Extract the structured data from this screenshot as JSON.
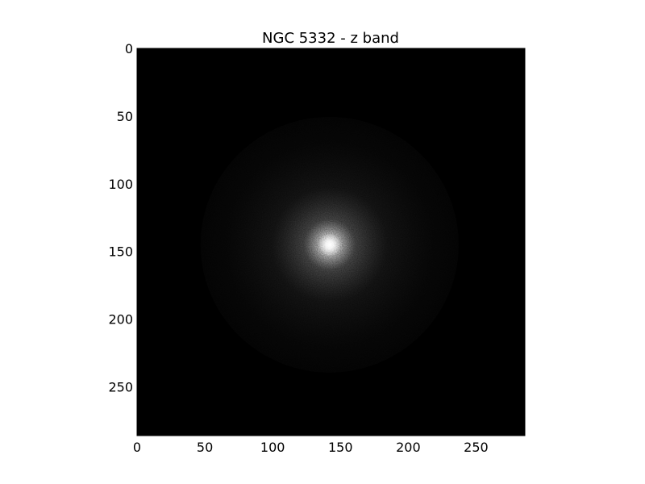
{
  "chart_data": {
    "type": "heatmap",
    "title": "NGC 5332 - z band",
    "xlabel": "",
    "ylabel": "",
    "colormap": "gray",
    "background_color": "#000000",
    "xlim": [
      0,
      286
    ],
    "ylim": [
      286,
      0
    ],
    "x_ticks": [
      0,
      50,
      100,
      150,
      200,
      250
    ],
    "y_ticks": [
      0,
      50,
      100,
      150,
      200,
      250
    ],
    "y_axis_inverted": true,
    "grid": false,
    "source": {
      "center": [
        142,
        145
      ],
      "disk_extent": [
        [
          54,
          232
        ],
        [
          142,
          148
        ]
      ],
      "core_peak": 1.0,
      "disk_edge_level": 0.12,
      "noise": true
    }
  }
}
